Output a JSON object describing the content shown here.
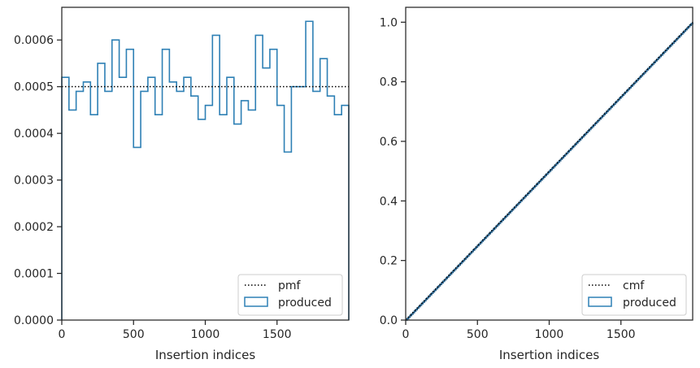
{
  "chart_data": [
    {
      "type": "step-histogram",
      "xlabel": "Insertion indices",
      "ylabel": "",
      "xlim": [
        0,
        2000
      ],
      "ylim": [
        0,
        0.00067
      ],
      "xticks": [
        0,
        500,
        1000,
        1500
      ],
      "xtick_labels": [
        "0",
        "500",
        "1000",
        "1500"
      ],
      "yticks": [
        0,
        0.0001,
        0.0002,
        0.0003,
        0.0004,
        0.0005,
        0.0006
      ],
      "ytick_labels": [
        "0.0000",
        "0.0001",
        "0.0002",
        "0.0003",
        "0.0004",
        "0.0005",
        "0.0006"
      ],
      "bin_width": 50,
      "series": [
        {
          "name": "produced",
          "style": "step",
          "bin_edges_start": 0,
          "values": [
            0.00052,
            0.00045,
            0.00049,
            0.00051,
            0.00044,
            0.00055,
            0.00049,
            0.0006,
            0.00052,
            0.00058,
            0.00037,
            0.00049,
            0.00052,
            0.00044,
            0.00058,
            0.00051,
            0.00049,
            0.00052,
            0.00048,
            0.00043,
            0.00046,
            0.00061,
            0.00044,
            0.00052,
            0.00042,
            0.00047,
            0.00045,
            0.00061,
            0.00054,
            0.00058,
            0.00046,
            0.00036,
            0.0005,
            0.0005,
            0.00064,
            0.00049,
            0.00056,
            0.00048,
            0.00044,
            0.00046
          ]
        },
        {
          "name": "pmf",
          "style": "dotted",
          "constant": 0.0005
        }
      ],
      "legend": [
        "pmf",
        "produced"
      ],
      "legend_position": "lower right",
      "grid": false
    },
    {
      "type": "step-cumulative",
      "xlabel": "Insertion indices",
      "ylabel": "",
      "xlim": [
        0,
        2000
      ],
      "ylim": [
        0,
        1.05
      ],
      "xticks": [
        0,
        500,
        1000,
        1500
      ],
      "xtick_labels": [
        "0",
        "500",
        "1000",
        "1500"
      ],
      "yticks": [
        0,
        0.2,
        0.4,
        0.6,
        0.8,
        1.0
      ],
      "ytick_labels": [
        "0.0",
        "0.2",
        "0.4",
        "0.6",
        "0.8",
        "1.0"
      ],
      "series": [
        {
          "name": "produced",
          "style": "step",
          "x": [
            0,
            2000
          ],
          "y": [
            0,
            1.0
          ]
        },
        {
          "name": "cmf",
          "style": "dotted",
          "x": [
            0,
            2000
          ],
          "y": [
            0,
            1.0
          ]
        }
      ],
      "legend": [
        "cmf",
        "produced"
      ],
      "legend_position": "lower right",
      "grid": false
    }
  ],
  "colors": {
    "produced": "#2e80b5",
    "produced_cumulative": "#1f5a85",
    "reference": "#000000",
    "axes": "#262626"
  }
}
